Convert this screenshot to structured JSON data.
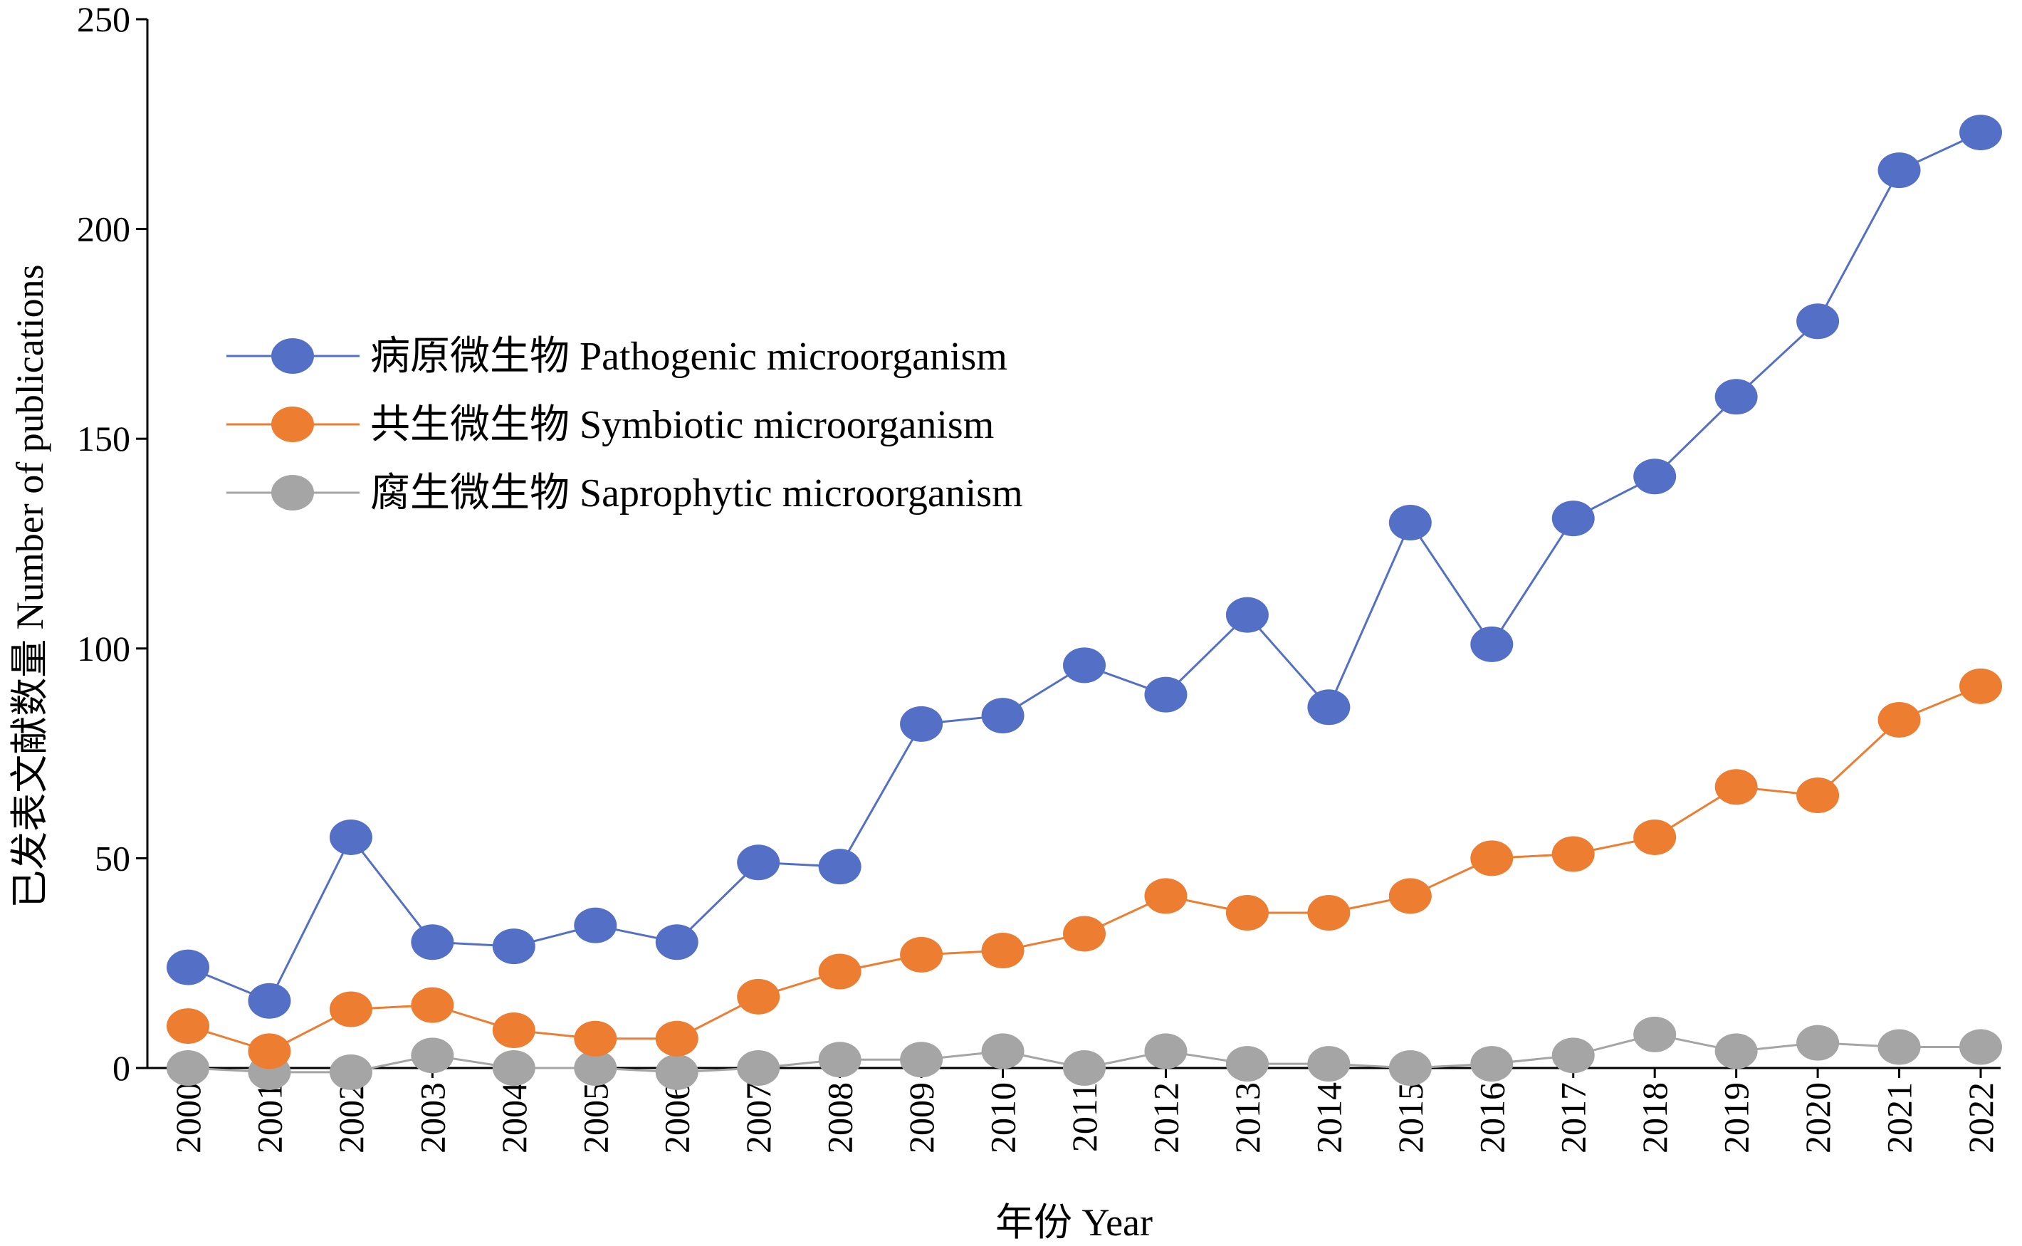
{
  "chart_data": {
    "type": "line",
    "title": "",
    "xlabel": "年份 Year",
    "ylabel": "已发表文献数量 Number of publications",
    "ylim": [
      0,
      250
    ],
    "yticks": [
      0,
      50,
      100,
      150,
      200,
      250
    ],
    "grid": false,
    "legend_position": "upper-left",
    "categories": [
      "2000",
      "2001",
      "2002",
      "2003",
      "2004",
      "2005",
      "2006",
      "2007",
      "2008",
      "2009",
      "2010",
      "2011",
      "2012",
      "2013",
      "2014",
      "2015",
      "2016",
      "2017",
      "2018",
      "2019",
      "2020",
      "2021",
      "2022"
    ],
    "series": [
      {
        "name": "病原微生物 Pathogenic microorganism",
        "color": "#5470c6",
        "values": [
          24,
          16,
          55,
          30,
          29,
          34,
          30,
          49,
          48,
          82,
          84,
          96,
          89,
          108,
          86,
          130,
          101,
          131,
          141,
          160,
          178,
          214,
          223
        ]
      },
      {
        "name": "共生微生物 Symbiotic microorganism",
        "color": "#ed7d31",
        "values": [
          10,
          4,
          14,
          15,
          9,
          7,
          7,
          17,
          23,
          27,
          28,
          32,
          41,
          37,
          37,
          41,
          50,
          51,
          55,
          67,
          65,
          83,
          91
        ]
      },
      {
        "name": "腐生微生物 Saprophytic microorganism",
        "color": "#a5a5a5",
        "values": [
          0,
          -1,
          -1,
          3,
          0,
          0,
          -1,
          0,
          2,
          2,
          4,
          0,
          4,
          1,
          1,
          0,
          1,
          3,
          8,
          4,
          6,
          5,
          5
        ]
      }
    ]
  }
}
